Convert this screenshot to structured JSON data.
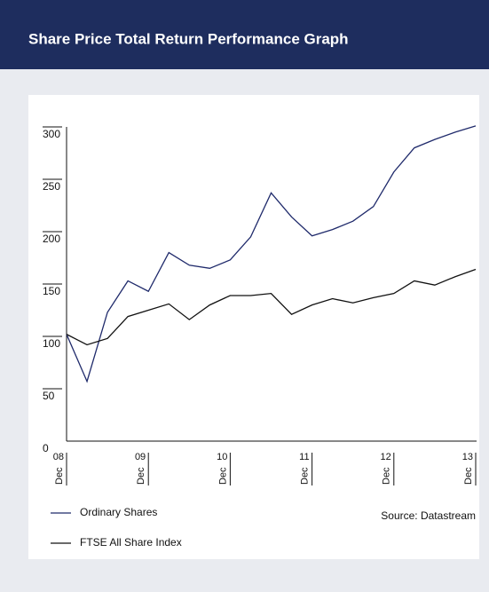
{
  "header": {
    "title": "Share Price Total Return Performance Graph"
  },
  "chart_data": {
    "type": "line",
    "x": [
      0,
      1,
      2,
      3,
      4,
      5,
      6,
      7,
      8,
      9,
      10,
      11,
      12,
      13,
      14,
      15,
      16,
      17,
      18,
      19,
      20
    ],
    "series": [
      {
        "name": "Ordinary Shares",
        "color": "#1f2a6b",
        "values": [
          102,
          57,
          123,
          153,
          143,
          180,
          168,
          165,
          173,
          195,
          237,
          214,
          196,
          202,
          210,
          224,
          257,
          280,
          288,
          295,
          301
        ]
      },
      {
        "name": "FTSE All Share Index",
        "color": "#111111",
        "values": [
          102,
          92,
          98,
          119,
          125,
          131,
          116,
          130,
          139,
          139,
          141,
          121,
          130,
          136,
          132,
          137,
          141,
          153,
          149,
          157,
          164
        ]
      }
    ],
    "xlim": [
      0,
      20
    ],
    "xticks": [
      {
        "value": 0,
        "label": "08"
      },
      {
        "value": 4,
        "label": "09"
      },
      {
        "value": 8,
        "label": "10"
      },
      {
        "value": 12,
        "label": "11"
      },
      {
        "value": 16,
        "label": "12"
      },
      {
        "value": 20,
        "label": "13"
      }
    ],
    "x_sublabel": "Dec",
    "ylim": [
      0,
      300
    ],
    "yticks": [
      0,
      50,
      100,
      150,
      200,
      250,
      300
    ],
    "source": "Source: Datastream"
  }
}
